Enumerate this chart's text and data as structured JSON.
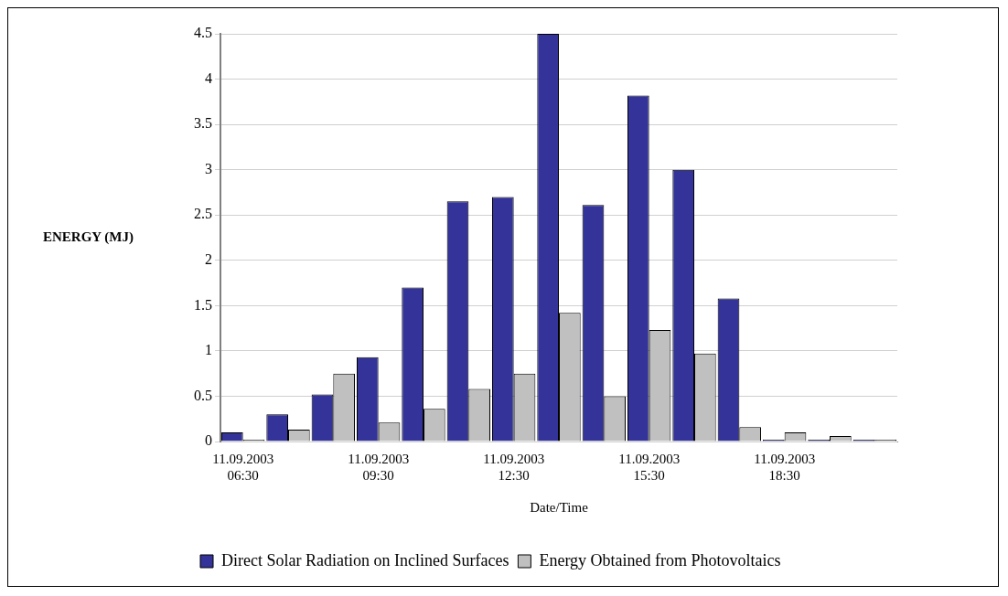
{
  "chart_data": {
    "type": "bar",
    "xlabel": "Date/Time",
    "ylabel": "ENERGY (MJ)",
    "categories": [
      "11.09.2003\n06:30",
      null,
      null,
      "11.09.2003\n09:30",
      null,
      null,
      "11.09.2003\n12:30",
      null,
      null,
      "11.09.2003\n15:30",
      null,
      null,
      "11.09.2003\n18:30",
      null,
      null
    ],
    "series": [
      {
        "name": "Direct Solar Radiation on Inclined Surfaces",
        "color": "#333399",
        "values": [
          0.1,
          0.3,
          0.52,
          0.93,
          1.7,
          2.65,
          2.7,
          4.5,
          2.61,
          3.82,
          3.0,
          1.58,
          0.02,
          0.02,
          0.02
        ]
      },
      {
        "name": "Energy Obtained from Photovoltaics",
        "color": "#c0c0c0",
        "values": [
          0.02,
          0.13,
          0.75,
          0.21,
          0.36,
          0.58,
          0.75,
          1.42,
          0.5,
          1.23,
          0.97,
          0.16,
          0.1,
          0.06,
          0.02
        ]
      }
    ],
    "ylim": [
      0,
      4.5
    ],
    "yticks": [
      0,
      0.5,
      1,
      1.5,
      2,
      2.5,
      3,
      3.5,
      4,
      4.5
    ],
    "grid": "y",
    "legend": "bottom left"
  }
}
